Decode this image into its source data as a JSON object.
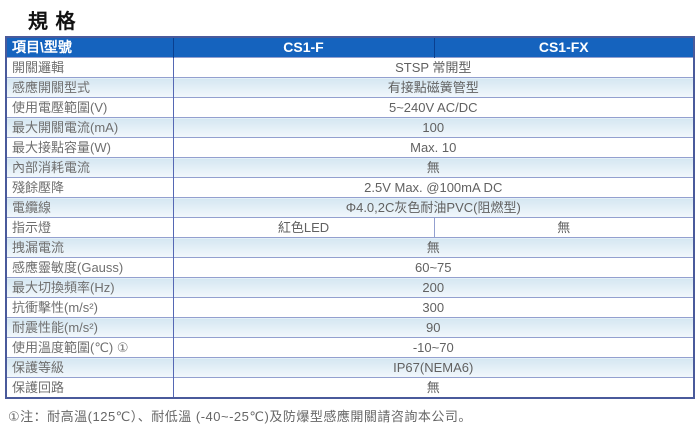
{
  "page": {
    "title": "規 格",
    "footnote": "①注：耐高溫(125℃）、耐低溫 (-40~-25℃)及防爆型感應開關請咨詢本公司。"
  },
  "table": {
    "header": {
      "item": "項目\\型號",
      "model1": "CS1-F",
      "model2": "CS1-FX"
    },
    "rows": [
      {
        "label": "開關邏輯",
        "span": true,
        "value": "STSP 常開型"
      },
      {
        "label": "感應開關型式",
        "span": true,
        "value": "有接點磁簧管型"
      },
      {
        "label": "使用電壓範圍(V)",
        "span": true,
        "value": "5~240V AC/DC"
      },
      {
        "label": "最大開關電流(mA)",
        "span": true,
        "value": "100"
      },
      {
        "label": "最大接點容量(W)",
        "span": true,
        "value": "Max. 10"
      },
      {
        "label": "內部消耗電流",
        "span": true,
        "value": "無"
      },
      {
        "label": "殘餘壓降",
        "span": true,
        "value": "2.5V Max. @100mA DC"
      },
      {
        "label": "電纜線",
        "span": true,
        "value": "Φ4.0,2C灰色耐油PVC(阻燃型)"
      },
      {
        "label": "指示燈",
        "span": false,
        "value_cs1f": "紅色LED",
        "value_cs1fx": "無"
      },
      {
        "label": "拽漏電流",
        "span": true,
        "value": "無"
      },
      {
        "label": "感應靈敏度(Gauss)",
        "span": true,
        "value": "60~75"
      },
      {
        "label": "最大切換頻率(Hz)",
        "span": true,
        "value": "200"
      },
      {
        "label": "抗衝擊性(m/s²)",
        "span": true,
        "value": "300"
      },
      {
        "label": "耐震性能(m/s²)",
        "span": true,
        "value": "90"
      },
      {
        "label": "使用溫度範圍(℃) ①",
        "span": true,
        "value": "-10~70"
      },
      {
        "label": "保護等級",
        "span": true,
        "value": "IP67(NEMA6)"
      },
      {
        "label": "保護回路",
        "span": true,
        "value": "無"
      }
    ],
    "colors": {
      "header_bg": "#1563be",
      "header_text": "#ffffff",
      "alt_row_top": "#d5e7f2",
      "alt_row_bottom": "#f2f8fc",
      "grid_line": "#93a0cf",
      "column_divider": "#5568b4",
      "outer_border": "#4a5a9b",
      "label_text": "#6f6f6f",
      "value_text": "#616161",
      "title_text": "#111111",
      "footnote_text": "#666666"
    }
  }
}
